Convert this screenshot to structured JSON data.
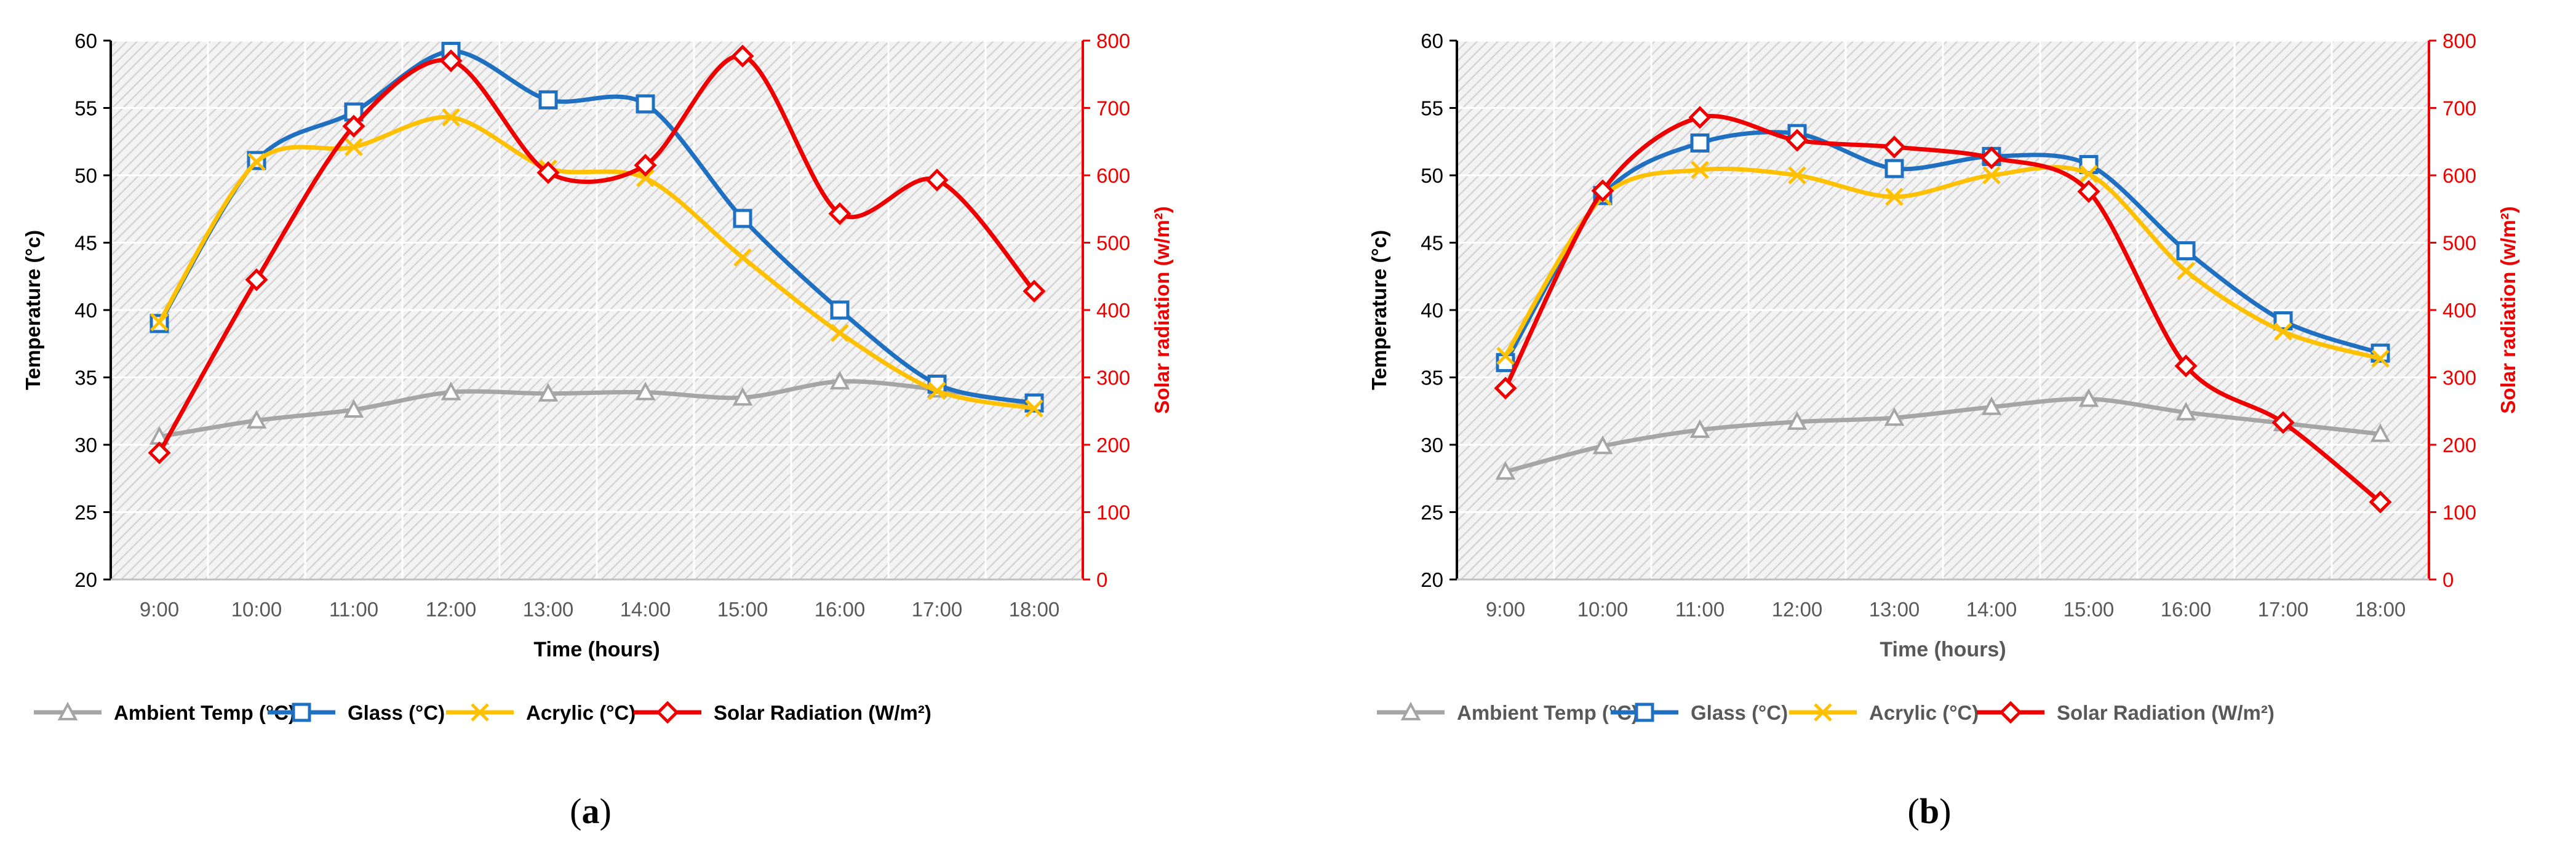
{
  "figure": {
    "panel_labels": [
      "(a)",
      "(b)"
    ],
    "series_colors": {
      "ambient": "#a5a5a5",
      "glass": "#1f70c1",
      "acrylic": "#ffc000",
      "solar": "#ee0000"
    }
  },
  "chart_data": [
    {
      "type": "line",
      "panel": "(a)",
      "xlabel": "Time (hours)",
      "ylabel": "Temperature (°c)",
      "y2label": "Solar radiation (w/m²)",
      "ylim": [
        20,
        60
      ],
      "y2lim": [
        0,
        800
      ],
      "yticks": [
        20,
        25,
        30,
        35,
        40,
        45,
        50,
        55,
        60
      ],
      "y2ticks": [
        0,
        100,
        200,
        300,
        400,
        500,
        600,
        700,
        800
      ],
      "grid": true,
      "legend_position": "bottom",
      "categories": [
        "9:00",
        "10:00",
        "11:00",
        "12:00",
        "13:00",
        "14:00",
        "15:00",
        "16:00",
        "17:00",
        "18:00"
      ],
      "series": [
        {
          "name": "Ambient Temp (°C)",
          "axis": "left",
          "marker": "triangle",
          "color": "#a5a5a5",
          "values": [
            30.6,
            31.8,
            32.6,
            33.9,
            33.8,
            33.9,
            33.5,
            34.7,
            34.1,
            33.0
          ]
        },
        {
          "name": "Glass (°C)",
          "axis": "left",
          "marker": "square",
          "color": "#1f70c1",
          "values": [
            39.0,
            51.1,
            54.7,
            59.2,
            55.6,
            55.3,
            46.8,
            40.0,
            34.5,
            33.1
          ]
        },
        {
          "name": "Acrylic (°C)",
          "axis": "left",
          "marker": "x",
          "color": "#ffc000",
          "values": [
            39.1,
            51.0,
            52.1,
            54.3,
            50.5,
            49.8,
            43.9,
            38.3,
            34.0,
            32.7
          ]
        },
        {
          "name": "Solar Radiation (W/m²)",
          "axis": "right",
          "marker": "diamond",
          "color": "#ee0000",
          "values": [
            188,
            445,
            673,
            770,
            604,
            615,
            777,
            543,
            593,
            428
          ]
        }
      ]
    },
    {
      "type": "line",
      "panel": "(b)",
      "xlabel": "Time (hours)",
      "ylabel": "Temperature (°c)",
      "y2label": "Solar radiation (w/m²)",
      "ylim": [
        20,
        60
      ],
      "y2lim": [
        0,
        800
      ],
      "yticks": [
        20,
        25,
        30,
        35,
        40,
        45,
        50,
        55,
        60
      ],
      "y2ticks": [
        0,
        100,
        200,
        300,
        400,
        500,
        600,
        700,
        800
      ],
      "grid": true,
      "legend_position": "bottom",
      "categories": [
        "9:00",
        "10:00",
        "11:00",
        "12:00",
        "13:00",
        "14:00",
        "15:00",
        "16:00",
        "17:00",
        "18:00"
      ],
      "series": [
        {
          "name": "Ambient Temp (°C)",
          "axis": "left",
          "marker": "triangle",
          "color": "#a5a5a5",
          "values": [
            28.0,
            29.9,
            31.1,
            31.7,
            32.0,
            32.8,
            33.4,
            32.4,
            31.6,
            30.8
          ]
        },
        {
          "name": "Glass (°C)",
          "axis": "left",
          "marker": "square",
          "color": "#1f70c1",
          "values": [
            36.1,
            48.5,
            52.4,
            53.1,
            50.5,
            51.4,
            50.8,
            44.4,
            39.2,
            36.8
          ]
        },
        {
          "name": "Acrylic (°C)",
          "axis": "left",
          "marker": "x",
          "color": "#ffc000",
          "values": [
            36.6,
            48.4,
            50.4,
            50.0,
            48.4,
            50.0,
            50.1,
            42.9,
            38.4,
            36.4
          ]
        },
        {
          "name": "Solar Radiation (W/m²)",
          "axis": "right",
          "marker": "diamond",
          "color": "#ee0000",
          "values": [
            284,
            577,
            686,
            652,
            642,
            626,
            576,
            317,
            233,
            115
          ]
        }
      ]
    }
  ]
}
